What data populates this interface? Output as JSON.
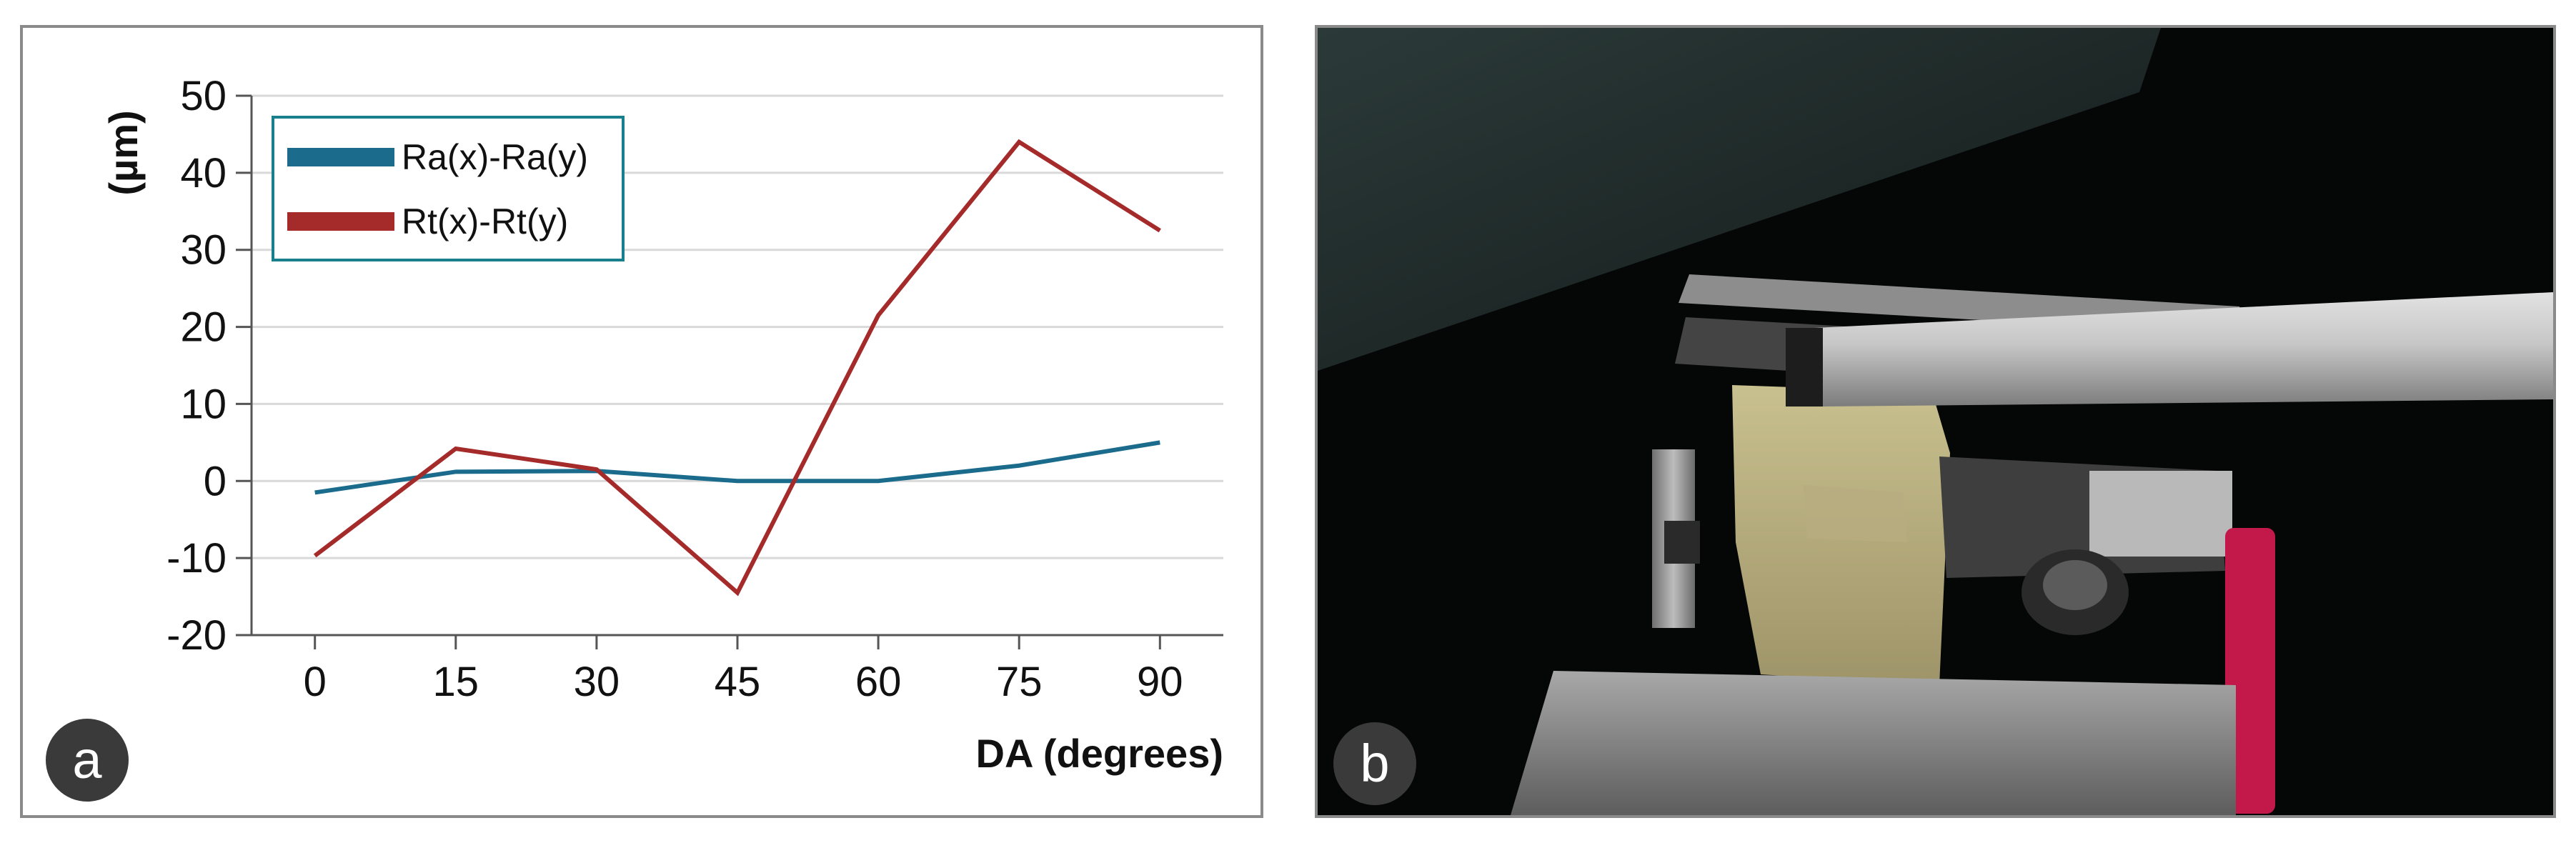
{
  "chart_data": {
    "type": "line",
    "x": [
      0,
      15,
      30,
      45,
      60,
      75,
      90
    ],
    "x_tick_labels": [
      "0",
      "15",
      "30",
      "45",
      "60",
      "75",
      "90"
    ],
    "y_tick_labels": [
      "50",
      "40",
      "30",
      "20",
      "10",
      "0",
      "-10",
      "-20"
    ],
    "ylim": [
      -20,
      50
    ],
    "xlabel": "DA (degrees)",
    "ylabel": "(µm)",
    "grid": true,
    "legend_position": "top-left",
    "series": [
      {
        "name": "Ra(x)-Ra(y)",
        "color": "#1b6b8c",
        "values": [
          -1.5,
          1.2,
          1.3,
          0.0,
          0.0,
          2.0,
          5.0
        ]
      },
      {
        "name": "Rt(x)-Rt(y)",
        "color": "#a52a2a",
        "values": [
          -9.7,
          4.2,
          1.5,
          -14.5,
          21.5,
          44.0,
          32.5
        ]
      }
    ]
  },
  "panel_labels": {
    "a": "a",
    "b": "b"
  },
  "legend_border_color": "#1a7f8c"
}
